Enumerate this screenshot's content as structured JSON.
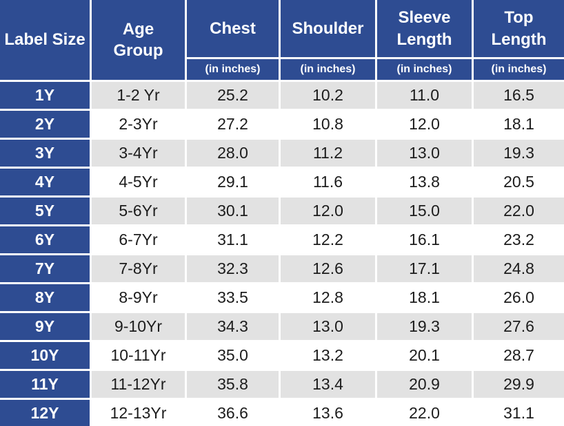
{
  "chart_data": {
    "type": "table",
    "columns": [
      {
        "label": "Label Size",
        "sub": ""
      },
      {
        "label": "Age\nGroup",
        "sub": ""
      },
      {
        "label": "Chest",
        "sub": "(in inches)"
      },
      {
        "label": "Shoulder",
        "sub": "(in inches)"
      },
      {
        "label": "Sleeve\nLength",
        "sub": "(in inches)"
      },
      {
        "label": "Top\nLength",
        "sub": "(in inches)"
      }
    ],
    "rows": [
      [
        "1Y",
        "1-2 Yr",
        "25.2",
        "10.2",
        "11.0",
        "16.5"
      ],
      [
        "2Y",
        "2-3Yr",
        "27.2",
        "10.8",
        "12.0",
        "18.1"
      ],
      [
        "3Y",
        "3-4Yr",
        "28.0",
        "11.2",
        "13.0",
        "19.3"
      ],
      [
        "4Y",
        "4-5Yr",
        "29.1",
        "11.6",
        "13.8",
        "20.5"
      ],
      [
        "5Y",
        "5-6Yr",
        "30.1",
        "12.0",
        "15.0",
        "22.0"
      ],
      [
        "6Y",
        "6-7Yr",
        "31.1",
        "12.2",
        "16.1",
        "23.2"
      ],
      [
        "7Y",
        "7-8Yr",
        "32.3",
        "12.6",
        "17.1",
        "24.8"
      ],
      [
        "8Y",
        "8-9Yr",
        "33.5",
        "12.8",
        "18.1",
        "26.0"
      ],
      [
        "9Y",
        "9-10Yr",
        "34.3",
        "13.0",
        "19.3",
        "27.6"
      ],
      [
        "10Y",
        "10-11Yr",
        "35.0",
        "13.2",
        "20.1",
        "28.7"
      ],
      [
        "11Y",
        "11-12Yr",
        "35.8",
        "13.4",
        "20.9",
        "29.9"
      ],
      [
        "12Y",
        "12-13Yr",
        "36.6",
        "13.6",
        "22.0",
        "31.1"
      ]
    ]
  },
  "colors": {
    "header_blue": "#2e4c92",
    "band_gray": "#e2e2e2",
    "band_white": "#ffffff",
    "grid_line": "#ffffff",
    "header_text": "#ffffff",
    "data_text": "#1c1c1c"
  }
}
